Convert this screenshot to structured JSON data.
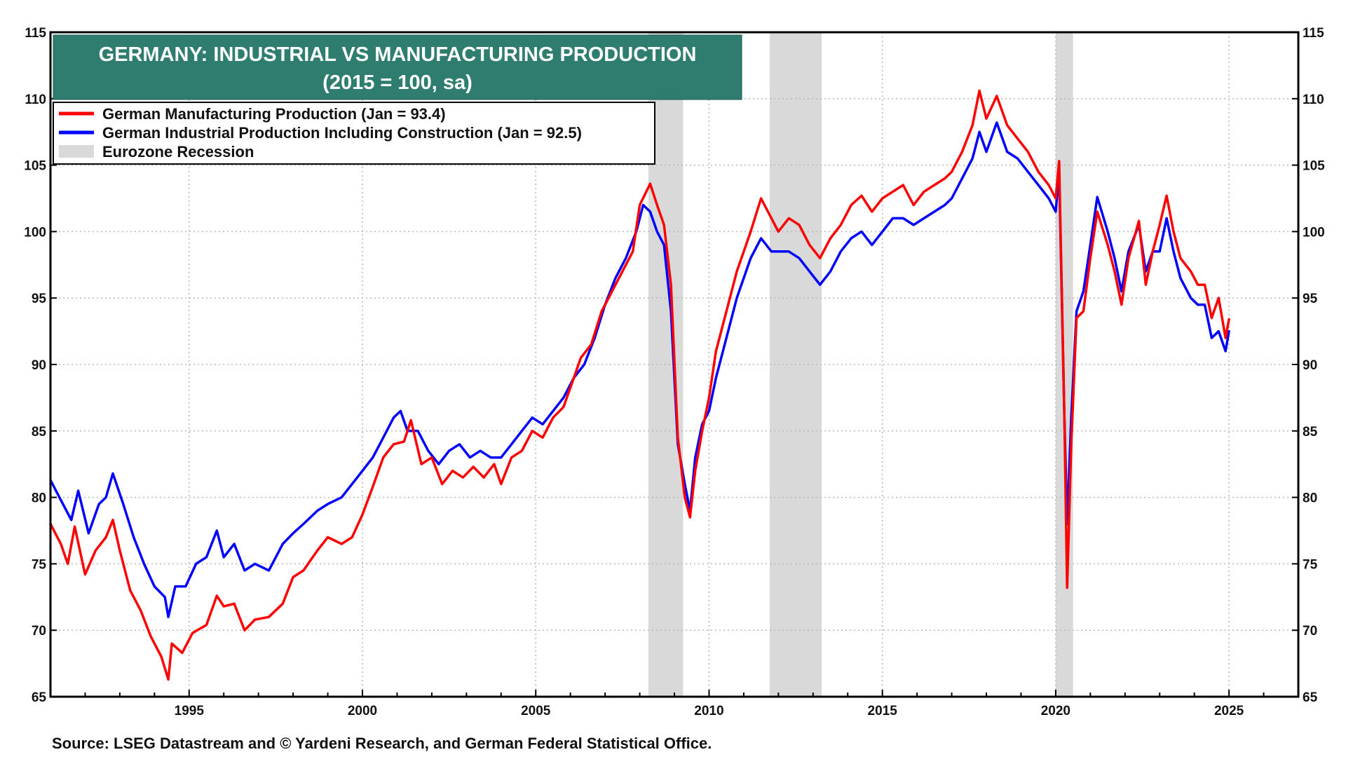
{
  "chart_data": {
    "type": "line",
    "title": "GERMANY: INDUSTRIAL VS MANUFACTURING PRODUCTION",
    "subtitle": "(2015 = 100, sa)",
    "source": "Source: LSEG Datastream and © Yardeni Research, and German Federal Statistical Office.",
    "xlim": [
      1991.0,
      2027.0
    ],
    "ylim": [
      65,
      115
    ],
    "x_ticks": [
      1995,
      2000,
      2005,
      2010,
      2015,
      2020,
      2025
    ],
    "y_ticks": [
      65,
      70,
      75,
      80,
      85,
      90,
      95,
      100,
      105,
      110,
      115
    ],
    "grid": true,
    "legend_position": "top-left",
    "legend": [
      {
        "label": "German Manufacturing Production (Jan = 93.4)",
        "color": "#ff0000",
        "kind": "line"
      },
      {
        "label": "German Industrial Production Including Construction (Jan = 92.5)",
        "color": "#0000ff",
        "kind": "line"
      },
      {
        "label": "Eurozone Recession",
        "color": "#d9d9d9",
        "kind": "band"
      }
    ],
    "recessions": [
      [
        2008.25,
        2009.25
      ],
      [
        2011.75,
        2013.25
      ],
      [
        2020.0,
        2020.5
      ]
    ],
    "series": [
      {
        "name": "German Manufacturing Production",
        "color": "#ff0000",
        "points": [
          [
            1991.0,
            78.0
          ],
          [
            1991.3,
            76.5
          ],
          [
            1991.5,
            75.0
          ],
          [
            1991.7,
            77.8
          ],
          [
            1992.0,
            74.2
          ],
          [
            1992.3,
            76.0
          ],
          [
            1992.6,
            77.0
          ],
          [
            1992.8,
            78.3
          ],
          [
            1993.0,
            76.0
          ],
          [
            1993.3,
            73.0
          ],
          [
            1993.6,
            71.5
          ],
          [
            1993.9,
            69.5
          ],
          [
            1994.2,
            68.0
          ],
          [
            1994.4,
            66.3
          ],
          [
            1994.5,
            69.0
          ],
          [
            1994.8,
            68.3
          ],
          [
            1995.1,
            69.8
          ],
          [
            1995.5,
            70.4
          ],
          [
            1995.8,
            72.6
          ],
          [
            1996.0,
            71.8
          ],
          [
            1996.3,
            72.0
          ],
          [
            1996.6,
            70.0
          ],
          [
            1996.9,
            70.8
          ],
          [
            1997.3,
            71.0
          ],
          [
            1997.7,
            72.0
          ],
          [
            1998.0,
            74.0
          ],
          [
            1998.3,
            74.5
          ],
          [
            1998.7,
            76.0
          ],
          [
            1999.0,
            77.0
          ],
          [
            1999.4,
            76.5
          ],
          [
            1999.7,
            77.0
          ],
          [
            2000.0,
            78.7
          ],
          [
            2000.3,
            80.8
          ],
          [
            2000.6,
            83.0
          ],
          [
            2000.9,
            84.0
          ],
          [
            2001.2,
            84.2
          ],
          [
            2001.4,
            85.8
          ],
          [
            2001.7,
            82.5
          ],
          [
            2002.0,
            83.0
          ],
          [
            2002.3,
            81.0
          ],
          [
            2002.6,
            82.0
          ],
          [
            2002.9,
            81.5
          ],
          [
            2003.2,
            82.3
          ],
          [
            2003.5,
            81.5
          ],
          [
            2003.8,
            82.5
          ],
          [
            2004.0,
            81.0
          ],
          [
            2004.3,
            83.0
          ],
          [
            2004.6,
            83.5
          ],
          [
            2004.9,
            85.0
          ],
          [
            2005.2,
            84.5
          ],
          [
            2005.5,
            86.0
          ],
          [
            2005.8,
            86.8
          ],
          [
            2006.1,
            89.0
          ],
          [
            2006.3,
            90.5
          ],
          [
            2006.6,
            91.5
          ],
          [
            2006.9,
            94.0
          ],
          [
            2007.2,
            95.5
          ],
          [
            2007.5,
            97.0
          ],
          [
            2007.8,
            98.5
          ],
          [
            2008.0,
            102.0
          ],
          [
            2008.3,
            103.6
          ],
          [
            2008.5,
            102.0
          ],
          [
            2008.7,
            100.5
          ],
          [
            2008.9,
            96.0
          ],
          [
            2009.1,
            84.5
          ],
          [
            2009.3,
            80.0
          ],
          [
            2009.45,
            78.5
          ],
          [
            2009.6,
            82.0
          ],
          [
            2009.8,
            85.0
          ],
          [
            2010.0,
            87.5
          ],
          [
            2010.2,
            91.0
          ],
          [
            2010.5,
            94.0
          ],
          [
            2010.8,
            97.0
          ],
          [
            2011.2,
            100.0
          ],
          [
            2011.5,
            102.5
          ],
          [
            2011.8,
            101.0
          ],
          [
            2012.0,
            100.0
          ],
          [
            2012.3,
            101.0
          ],
          [
            2012.6,
            100.5
          ],
          [
            2012.9,
            99.0
          ],
          [
            2013.2,
            98.0
          ],
          [
            2013.5,
            99.5
          ],
          [
            2013.8,
            100.5
          ],
          [
            2014.1,
            102.0
          ],
          [
            2014.4,
            102.7
          ],
          [
            2014.7,
            101.5
          ],
          [
            2015.0,
            102.5
          ],
          [
            2015.3,
            103.0
          ],
          [
            2015.6,
            103.5
          ],
          [
            2015.9,
            102.0
          ],
          [
            2016.2,
            103.0
          ],
          [
            2016.5,
            103.5
          ],
          [
            2016.8,
            104.0
          ],
          [
            2017.0,
            104.5
          ],
          [
            2017.3,
            106.0
          ],
          [
            2017.6,
            108.0
          ],
          [
            2017.8,
            110.6
          ],
          [
            2018.0,
            108.5
          ],
          [
            2018.3,
            110.2
          ],
          [
            2018.6,
            108.0
          ],
          [
            2018.9,
            107.0
          ],
          [
            2019.2,
            106.0
          ],
          [
            2019.5,
            104.5
          ],
          [
            2019.8,
            103.5
          ],
          [
            2020.0,
            102.5
          ],
          [
            2020.1,
            105.3
          ],
          [
            2020.25,
            86.0
          ],
          [
            2020.33,
            73.2
          ],
          [
            2020.45,
            84.0
          ],
          [
            2020.6,
            93.5
          ],
          [
            2020.8,
            94.0
          ],
          [
            2021.0,
            98.0
          ],
          [
            2021.2,
            101.5
          ],
          [
            2021.5,
            99.0
          ],
          [
            2021.7,
            97.0
          ],
          [
            2021.9,
            94.5
          ],
          [
            2022.1,
            98.0
          ],
          [
            2022.4,
            100.8
          ],
          [
            2022.6,
            96.0
          ],
          [
            2022.8,
            98.5
          ],
          [
            2023.0,
            100.5
          ],
          [
            2023.2,
            102.7
          ],
          [
            2023.4,
            100.0
          ],
          [
            2023.6,
            98.0
          ],
          [
            2023.9,
            97.0
          ],
          [
            2024.1,
            96.0
          ],
          [
            2024.3,
            96.0
          ],
          [
            2024.5,
            93.5
          ],
          [
            2024.7,
            95.0
          ],
          [
            2024.9,
            92.0
          ],
          [
            2025.0,
            93.4
          ]
        ]
      },
      {
        "name": "German Industrial Production Including Construction",
        "color": "#0000ff",
        "points": [
          [
            1991.0,
            81.3
          ],
          [
            1991.3,
            79.8
          ],
          [
            1991.6,
            78.3
          ],
          [
            1991.8,
            80.5
          ],
          [
            1992.1,
            77.3
          ],
          [
            1992.4,
            79.5
          ],
          [
            1992.6,
            80.0
          ],
          [
            1992.8,
            81.8
          ],
          [
            1993.1,
            79.5
          ],
          [
            1993.4,
            77.0
          ],
          [
            1993.7,
            75.0
          ],
          [
            1994.0,
            73.3
          ],
          [
            1994.3,
            72.5
          ],
          [
            1994.4,
            71.0
          ],
          [
            1994.6,
            73.3
          ],
          [
            1994.9,
            73.3
          ],
          [
            1995.2,
            75.0
          ],
          [
            1995.5,
            75.5
          ],
          [
            1995.8,
            77.5
          ],
          [
            1996.0,
            75.5
          ],
          [
            1996.3,
            76.5
          ],
          [
            1996.6,
            74.5
          ],
          [
            1996.9,
            75.0
          ],
          [
            1997.3,
            74.5
          ],
          [
            1997.7,
            76.5
          ],
          [
            1998.0,
            77.3
          ],
          [
            1998.3,
            78.0
          ],
          [
            1998.7,
            79.0
          ],
          [
            1999.0,
            79.5
          ],
          [
            1999.4,
            80.0
          ],
          [
            1999.7,
            81.0
          ],
          [
            2000.0,
            82.0
          ],
          [
            2000.3,
            83.0
          ],
          [
            2000.6,
            84.5
          ],
          [
            2000.9,
            86.0
          ],
          [
            2001.1,
            86.5
          ],
          [
            2001.3,
            85.0
          ],
          [
            2001.6,
            85.0
          ],
          [
            2001.9,
            83.5
          ],
          [
            2002.2,
            82.5
          ],
          [
            2002.5,
            83.5
          ],
          [
            2002.8,
            84.0
          ],
          [
            2003.1,
            83.0
          ],
          [
            2003.4,
            83.5
          ],
          [
            2003.7,
            83.0
          ],
          [
            2004.0,
            83.0
          ],
          [
            2004.3,
            84.0
          ],
          [
            2004.6,
            85.0
          ],
          [
            2004.9,
            86.0
          ],
          [
            2005.2,
            85.5
          ],
          [
            2005.5,
            86.5
          ],
          [
            2005.8,
            87.5
          ],
          [
            2006.1,
            89.0
          ],
          [
            2006.4,
            90.0
          ],
          [
            2006.7,
            92.0
          ],
          [
            2007.0,
            94.5
          ],
          [
            2007.3,
            96.5
          ],
          [
            2007.6,
            98.0
          ],
          [
            2007.9,
            100.0
          ],
          [
            2008.1,
            102.0
          ],
          [
            2008.3,
            101.5
          ],
          [
            2008.5,
            100.0
          ],
          [
            2008.7,
            99.0
          ],
          [
            2008.9,
            94.0
          ],
          [
            2009.1,
            84.0
          ],
          [
            2009.3,
            81.0
          ],
          [
            2009.45,
            79.0
          ],
          [
            2009.6,
            83.0
          ],
          [
            2009.8,
            85.5
          ],
          [
            2010.0,
            86.5
          ],
          [
            2010.2,
            89.0
          ],
          [
            2010.5,
            92.0
          ],
          [
            2010.8,
            95.0
          ],
          [
            2011.2,
            98.0
          ],
          [
            2011.5,
            99.5
          ],
          [
            2011.8,
            98.5
          ],
          [
            2012.0,
            98.5
          ],
          [
            2012.3,
            98.5
          ],
          [
            2012.6,
            98.0
          ],
          [
            2012.9,
            97.0
          ],
          [
            2013.2,
            96.0
          ],
          [
            2013.5,
            97.0
          ],
          [
            2013.8,
            98.5
          ],
          [
            2014.1,
            99.5
          ],
          [
            2014.4,
            100.0
          ],
          [
            2014.7,
            99.0
          ],
          [
            2015.0,
            100.0
          ],
          [
            2015.3,
            101.0
          ],
          [
            2015.6,
            101.0
          ],
          [
            2015.9,
            100.5
          ],
          [
            2016.2,
            101.0
          ],
          [
            2016.5,
            101.5
          ],
          [
            2016.8,
            102.0
          ],
          [
            2017.0,
            102.5
          ],
          [
            2017.3,
            104.0
          ],
          [
            2017.6,
            105.5
          ],
          [
            2017.8,
            107.5
          ],
          [
            2018.0,
            106.0
          ],
          [
            2018.3,
            108.2
          ],
          [
            2018.6,
            106.0
          ],
          [
            2018.9,
            105.5
          ],
          [
            2019.2,
            104.5
          ],
          [
            2019.5,
            103.5
          ],
          [
            2019.8,
            102.5
          ],
          [
            2020.0,
            101.5
          ],
          [
            2020.1,
            104.5
          ],
          [
            2020.25,
            86.0
          ],
          [
            2020.33,
            78.0
          ],
          [
            2020.45,
            86.0
          ],
          [
            2020.6,
            94.0
          ],
          [
            2020.8,
            95.5
          ],
          [
            2021.0,
            99.0
          ],
          [
            2021.2,
            102.6
          ],
          [
            2021.5,
            100.0
          ],
          [
            2021.7,
            98.0
          ],
          [
            2021.9,
            95.5
          ],
          [
            2022.1,
            98.5
          ],
          [
            2022.4,
            100.5
          ],
          [
            2022.6,
            97.0
          ],
          [
            2022.8,
            98.5
          ],
          [
            2023.0,
            98.5
          ],
          [
            2023.2,
            101.0
          ],
          [
            2023.4,
            98.5
          ],
          [
            2023.6,
            96.5
          ],
          [
            2023.9,
            95.0
          ],
          [
            2024.1,
            94.5
          ],
          [
            2024.3,
            94.5
          ],
          [
            2024.5,
            92.0
          ],
          [
            2024.7,
            92.5
          ],
          [
            2024.9,
            91.0
          ],
          [
            2025.0,
            92.5
          ]
        ]
      }
    ]
  }
}
